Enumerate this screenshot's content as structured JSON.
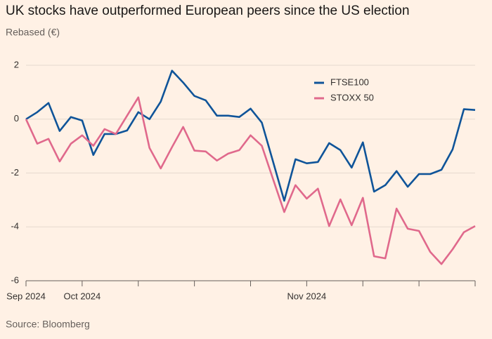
{
  "chart_data": {
    "type": "line",
    "title": "UK stocks have outperformed European peers since the US election",
    "subtitle": "Rebased (€)",
    "source": "Source: Bloomberg",
    "categories": [
      "Sep 2024",
      null,
      null,
      null,
      null,
      "Oct 2024",
      null,
      null,
      null,
      null,
      null,
      null,
      null,
      null,
      null,
      null,
      null,
      null,
      null,
      null,
      null,
      null,
      null,
      null,
      null,
      "Nov 2024",
      null,
      null,
      null,
      null,
      null,
      null,
      null,
      null,
      null,
      null,
      null,
      null,
      null,
      null,
      null
    ],
    "series": [
      {
        "name": "FTSE100",
        "color": "#0f5499",
        "values": [
          0,
          0.26,
          0.6,
          -0.44,
          0.08,
          -0.05,
          -1.33,
          -0.55,
          -0.55,
          -0.42,
          0.26,
          0,
          0.65,
          1.8,
          1.36,
          0.86,
          0.7,
          0.13,
          0.13,
          0.08,
          0.39,
          -0.13,
          -1.57,
          -3.03,
          -1.49,
          -1.64,
          -1.59,
          -0.89,
          -1.15,
          -1.8,
          -0.86,
          -2.69,
          -2.45,
          -1.93,
          -2.51,
          -2.04,
          -2.04,
          -1.88,
          -1.12,
          0.37,
          0.34
        ]
      },
      {
        "name": "STOXX 50",
        "color": "#e0698c",
        "values": [
          0,
          -0.91,
          -0.73,
          -1.57,
          -0.91,
          -0.6,
          -0.99,
          -0.37,
          -0.55,
          0.13,
          0.81,
          -1.07,
          -1.83,
          -1.04,
          -0.29,
          -1.17,
          -1.2,
          -1.54,
          -1.28,
          -1.15,
          -0.6,
          -0.99,
          -2.22,
          -3.45,
          -2.45,
          -2.95,
          -2.58,
          -3.97,
          -2.98,
          -3.94,
          -2.92,
          -5.09,
          -5.17,
          -3.32,
          -4.07,
          -4.15,
          -4.93,
          -5.38,
          -4.83,
          -4.2,
          -3.97
        ]
      }
    ],
    "ylim": [
      -6,
      2
    ],
    "yticks": [
      -6,
      -4,
      -2,
      0,
      2
    ],
    "grid": true,
    "legend": "upper right"
  }
}
